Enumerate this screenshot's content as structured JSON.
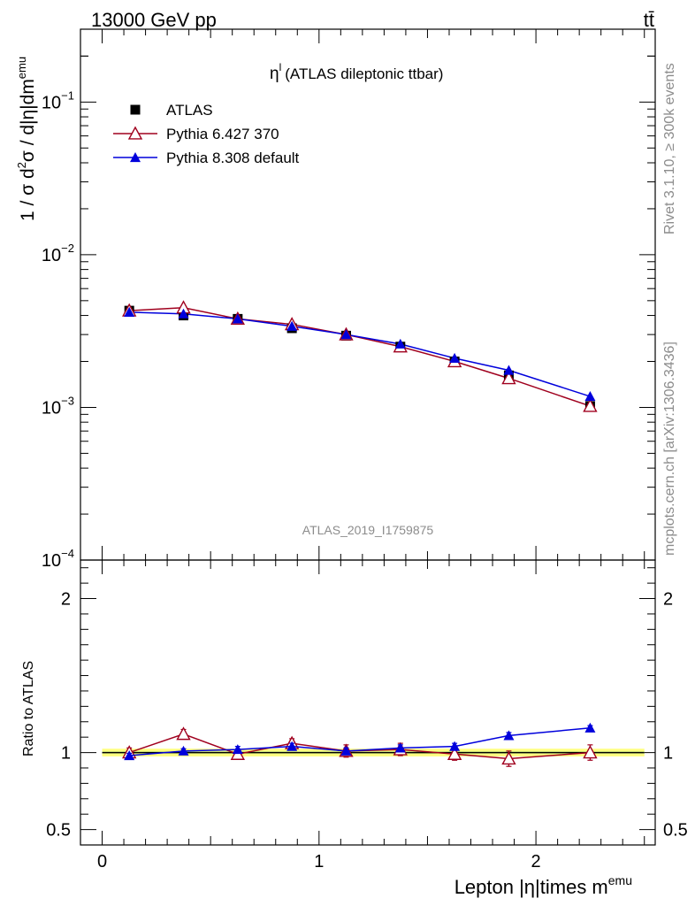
{
  "header": {
    "energy_label": "13000 GeV pp",
    "process_label": "tt̄"
  },
  "chart_data": [
    {
      "type": "scatter",
      "title": "η",
      "title_superscript": "l",
      "title_suffix": "(ATLAS dileptonic ttbar)",
      "ylabel_parts": [
        "1 / σ  d",
        "2",
        "σ / d|η|dm",
        "emu"
      ],
      "xlabel_main": "Lepton |η|times m",
      "xlabel_sup": "emu",
      "yscale": "log",
      "xlim": [
        -0.1,
        2.55
      ],
      "ylim": [
        0.0001,
        0.3
      ],
      "y_ticks": [
        {
          "value": 0.1,
          "base": "10",
          "exp": "−1"
        },
        {
          "value": 0.01,
          "base": "10",
          "exp": "−2"
        },
        {
          "value": 0.001,
          "base": "10",
          "exp": "−3"
        },
        {
          "value": 0.0001,
          "base": "10",
          "exp": "−4"
        }
      ],
      "watermark": "ATLAS_2019_I1759875",
      "legend_position": "top-left",
      "x": [
        0.125,
        0.375,
        0.625,
        0.875,
        1.125,
        1.375,
        1.625,
        1.875,
        2.25
      ],
      "series": [
        {
          "name": "ATLAS",
          "color": "#000000",
          "marker": "square",
          "values": [
            0.0043,
            0.004,
            0.0038,
            0.0033,
            0.00295,
            0.0025,
            0.002,
            0.00162,
            0.00102
          ]
        },
        {
          "name": "Pythia 6.427 370",
          "color": "#a0001e",
          "marker": "open-triangle",
          "values": [
            0.0043,
            0.0045,
            0.0038,
            0.0035,
            0.003,
            0.0025,
            0.002,
            0.00155,
            0.00102
          ]
        },
        {
          "name": "Pythia 8.308 default",
          "color": "#0000dc",
          "marker": "filled-triangle",
          "values": [
            0.0042,
            0.0041,
            0.0038,
            0.0034,
            0.003,
            0.0026,
            0.0021,
            0.00175,
            0.00118
          ]
        }
      ]
    },
    {
      "type": "scatter",
      "ylabel": "Ratio to ATLAS",
      "ylim": [
        0.4,
        2.25
      ],
      "y_ticks": [
        0.5,
        1,
        2
      ],
      "y_tick_labels": [
        "0.5",
        "1",
        "2"
      ],
      "xlim": [
        -0.1,
        2.55
      ],
      "x_ticks": [
        0,
        1,
        2
      ],
      "x_tick_labels": [
        "0",
        "1",
        "2"
      ],
      "x": [
        0.125,
        0.375,
        0.625,
        0.875,
        1.125,
        1.375,
        1.625,
        1.875,
        2.25
      ],
      "band_inner": [
        0.995,
        1.005
      ],
      "band_outer": [
        0.975,
        1.025
      ],
      "series": [
        {
          "name": "Pythia 6.427 370",
          "color": "#a0001e",
          "values": [
            1.0,
            1.12,
            0.99,
            1.06,
            1.01,
            1.02,
            0.99,
            0.96,
            1.0
          ],
          "errors": [
            0.03,
            0.03,
            0.03,
            0.03,
            0.04,
            0.04,
            0.04,
            0.05,
            0.05
          ]
        },
        {
          "name": "Pythia 8.308 default",
          "color": "#0000dc",
          "values": [
            0.98,
            1.01,
            1.02,
            1.04,
            1.01,
            1.03,
            1.04,
            1.11,
            1.16
          ],
          "errors": [
            0.015,
            0.015,
            0.02,
            0.02,
            0.02,
            0.02,
            0.02,
            0.02,
            0.015
          ]
        }
      ]
    }
  ],
  "side_labels": {
    "rivet": "Rivet 3.1.10, ≥ 300k events",
    "site": "mcplots.cern.ch [arXiv:1306.3436]"
  }
}
